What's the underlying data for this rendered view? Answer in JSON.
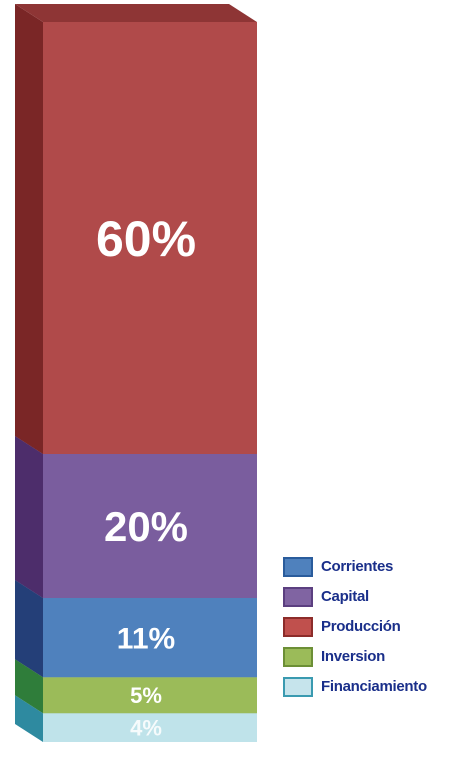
{
  "chart_data": {
    "type": "bar",
    "stacked": true,
    "categories": [
      ""
    ],
    "series": [
      {
        "name": "Financiamiento",
        "values": [
          4
        ],
        "label": "4%",
        "color": "#bfe3ea",
        "side": "#2e8aa0",
        "top": "#8fc6d3"
      },
      {
        "name": "Inversion",
        "values": [
          5
        ],
        "label": "5%",
        "color": "#9bbb59",
        "side": "#2f7d3a",
        "top": "#7fa642"
      },
      {
        "name": "Corrientes",
        "values": [
          11
        ],
        "label": "11%",
        "color": "#4f81bd",
        "side": "#243f78",
        "top": "#385d96"
      },
      {
        "name": "Capital",
        "values": [
          20
        ],
        "label": "20%",
        "color": "#7a5d9e",
        "side": "#4d2d6b",
        "top": "#604488"
      },
      {
        "name": "Producción",
        "values": [
          60
        ],
        "label": "60%",
        "color": "#b04a4a",
        "side": "#7a2626",
        "top": "#8e3535"
      }
    ],
    "legend": {
      "position": "right",
      "items": [
        {
          "label": "Corrientes",
          "color": "#4f81bd",
          "border": "#2a5c9c"
        },
        {
          "label": "Capital",
          "color": "#8064a2",
          "border": "#5b3f80"
        },
        {
          "label": "Producción",
          "color": "#c0504d",
          "border": "#8c2c2a"
        },
        {
          "label": "Inversion",
          "color": "#9bbb59",
          "border": "#6c8f36"
        },
        {
          "label": "Financiamiento",
          "color": "#c6e4ec",
          "border": "#3a9ab0"
        }
      ]
    }
  }
}
